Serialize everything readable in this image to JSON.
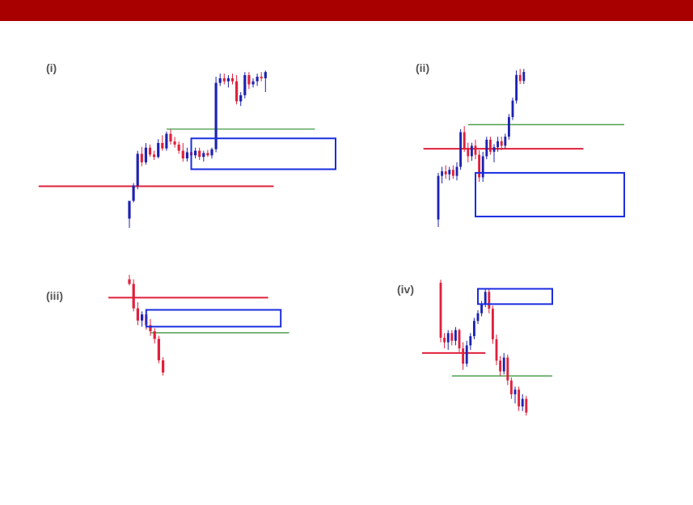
{
  "header": {
    "bar_color": "#a80000"
  },
  "colors": {
    "up": "#1c22b0",
    "down": "#e0203c",
    "level_red": "#e0203c",
    "level_green": "#2e8b2e",
    "zone_blue": "#1a2de0",
    "wick": "#333333"
  },
  "chart_data": [
    {
      "type": "candlestick",
      "label": "(i)",
      "ylim": [
        0,
        220
      ],
      "candles": [
        {
          "o": 12,
          "h": 35,
          "l": 0,
          "c": 35,
          "d": "up"
        },
        {
          "o": 35,
          "h": 58,
          "l": 33,
          "c": 55,
          "d": "up"
        },
        {
          "o": 55,
          "h": 100,
          "l": 50,
          "c": 96,
          "d": "up"
        },
        {
          "o": 96,
          "h": 105,
          "l": 80,
          "c": 85,
          "d": "down"
        },
        {
          "o": 85,
          "h": 110,
          "l": 82,
          "c": 104,
          "d": "up"
        },
        {
          "o": 104,
          "h": 108,
          "l": 92,
          "c": 95,
          "d": "down"
        },
        {
          "o": 95,
          "h": 100,
          "l": 88,
          "c": 92,
          "d": "down"
        },
        {
          "o": 92,
          "h": 115,
          "l": 90,
          "c": 110,
          "d": "up"
        },
        {
          "o": 110,
          "h": 120,
          "l": 100,
          "c": 103,
          "d": "down"
        },
        {
          "o": 103,
          "h": 125,
          "l": 100,
          "c": 122,
          "d": "up"
        },
        {
          "o": 122,
          "h": 128,
          "l": 108,
          "c": 112,
          "d": "down"
        },
        {
          "o": 112,
          "h": 118,
          "l": 104,
          "c": 108,
          "d": "down"
        },
        {
          "o": 108,
          "h": 112,
          "l": 96,
          "c": 100,
          "d": "down"
        },
        {
          "o": 100,
          "h": 110,
          "l": 86,
          "c": 90,
          "d": "down"
        },
        {
          "o": 90,
          "h": 104,
          "l": 86,
          "c": 98,
          "d": "up"
        },
        {
          "o": 98,
          "h": 102,
          "l": 90,
          "c": 94,
          "d": "down"
        },
        {
          "o": 94,
          "h": 104,
          "l": 90,
          "c": 100,
          "d": "up"
        },
        {
          "o": 100,
          "h": 104,
          "l": 88,
          "c": 92,
          "d": "down"
        },
        {
          "o": 92,
          "h": 100,
          "l": 86,
          "c": 97,
          "d": "up"
        },
        {
          "o": 97,
          "h": 101,
          "l": 92,
          "c": 94,
          "d": "down"
        },
        {
          "o": 94,
          "h": 104,
          "l": 90,
          "c": 102,
          "d": "up"
        },
        {
          "o": 102,
          "h": 196,
          "l": 98,
          "c": 188,
          "d": "up"
        },
        {
          "o": 188,
          "h": 200,
          "l": 184,
          "c": 194,
          "d": "up"
        },
        {
          "o": 194,
          "h": 200,
          "l": 186,
          "c": 190,
          "d": "down"
        },
        {
          "o": 190,
          "h": 198,
          "l": 182,
          "c": 194,
          "d": "up"
        },
        {
          "o": 194,
          "h": 200,
          "l": 186,
          "c": 190,
          "d": "down"
        },
        {
          "o": 190,
          "h": 198,
          "l": 160,
          "c": 164,
          "d": "down"
        },
        {
          "o": 164,
          "h": 176,
          "l": 158,
          "c": 172,
          "d": "up"
        },
        {
          "o": 172,
          "h": 202,
          "l": 168,
          "c": 198,
          "d": "up"
        },
        {
          "o": 198,
          "h": 202,
          "l": 180,
          "c": 186,
          "d": "down"
        },
        {
          "o": 186,
          "h": 194,
          "l": 182,
          "c": 190,
          "d": "up"
        },
        {
          "o": 190,
          "h": 200,
          "l": 184,
          "c": 196,
          "d": "up"
        },
        {
          "o": 196,
          "h": 202,
          "l": 190,
          "c": 194,
          "d": "down"
        },
        {
          "o": 194,
          "h": 204,
          "l": 176,
          "c": 202,
          "d": "up"
        }
      ],
      "levels": [
        {
          "color": "red",
          "y": 54,
          "from": -22,
          "to": 35
        },
        {
          "color": "green",
          "y": 128,
          "from": 9,
          "to": 45
        }
      ],
      "zones": [
        {
          "from": 15,
          "to": 50,
          "top": 116,
          "bottom": 76
        }
      ]
    },
    {
      "type": "candlestick",
      "label": "(ii)",
      "ylim": [
        0,
        220
      ],
      "candles": [
        {
          "o": 10,
          "h": 72,
          "l": 0,
          "c": 68,
          "d": "up"
        },
        {
          "o": 68,
          "h": 80,
          "l": 58,
          "c": 74,
          "d": "up"
        },
        {
          "o": 74,
          "h": 82,
          "l": 64,
          "c": 70,
          "d": "down"
        },
        {
          "o": 70,
          "h": 80,
          "l": 62,
          "c": 76,
          "d": "up"
        },
        {
          "o": 76,
          "h": 82,
          "l": 64,
          "c": 68,
          "d": "down"
        },
        {
          "o": 68,
          "h": 86,
          "l": 62,
          "c": 80,
          "d": "up"
        },
        {
          "o": 80,
          "h": 130,
          "l": 76,
          "c": 126,
          "d": "up"
        },
        {
          "o": 126,
          "h": 134,
          "l": 100,
          "c": 104,
          "d": "down"
        },
        {
          "o": 104,
          "h": 112,
          "l": 86,
          "c": 94,
          "d": "down"
        },
        {
          "o": 94,
          "h": 112,
          "l": 88,
          "c": 108,
          "d": "up"
        },
        {
          "o": 108,
          "h": 116,
          "l": 90,
          "c": 96,
          "d": "down"
        },
        {
          "o": 96,
          "h": 102,
          "l": 60,
          "c": 66,
          "d": "down"
        },
        {
          "o": 66,
          "h": 100,
          "l": 60,
          "c": 94,
          "d": "up"
        },
        {
          "o": 94,
          "h": 120,
          "l": 90,
          "c": 116,
          "d": "up"
        },
        {
          "o": 116,
          "h": 120,
          "l": 96,
          "c": 100,
          "d": "down"
        },
        {
          "o": 100,
          "h": 110,
          "l": 86,
          "c": 106,
          "d": "up"
        },
        {
          "o": 106,
          "h": 120,
          "l": 100,
          "c": 114,
          "d": "up"
        },
        {
          "o": 114,
          "h": 120,
          "l": 102,
          "c": 108,
          "d": "down"
        },
        {
          "o": 108,
          "h": 124,
          "l": 104,
          "c": 120,
          "d": "up"
        },
        {
          "o": 120,
          "h": 150,
          "l": 116,
          "c": 146,
          "d": "up"
        },
        {
          "o": 146,
          "h": 172,
          "l": 142,
          "c": 168,
          "d": "up"
        },
        {
          "o": 168,
          "h": 208,
          "l": 164,
          "c": 202,
          "d": "up"
        },
        {
          "o": 202,
          "h": 210,
          "l": 190,
          "c": 194,
          "d": "down"
        },
        {
          "o": 194,
          "h": 210,
          "l": 190,
          "c": 206,
          "d": "up"
        }
      ],
      "levels": [
        {
          "color": "red",
          "y": 104,
          "from": -4,
          "to": 39
        },
        {
          "color": "green",
          "y": 136,
          "from": 8,
          "to": 50
        }
      ],
      "zones": [
        {
          "from": 10,
          "to": 50,
          "top": 72,
          "bottom": 14
        }
      ]
    },
    {
      "type": "candlestick",
      "label": "(iii)",
      "ylim": [
        0,
        220
      ],
      "candles": [
        {
          "o": 214,
          "h": 220,
          "l": 206,
          "c": 208,
          "d": "down"
        },
        {
          "o": 208,
          "h": 214,
          "l": 172,
          "c": 176,
          "d": "down"
        },
        {
          "o": 176,
          "h": 184,
          "l": 154,
          "c": 160,
          "d": "down"
        },
        {
          "o": 160,
          "h": 172,
          "l": 152,
          "c": 168,
          "d": "up"
        },
        {
          "o": 168,
          "h": 172,
          "l": 148,
          "c": 154,
          "d": "down"
        },
        {
          "o": 154,
          "h": 162,
          "l": 140,
          "c": 146,
          "d": "down"
        },
        {
          "o": 146,
          "h": 150,
          "l": 130,
          "c": 136,
          "d": "down"
        },
        {
          "o": 136,
          "h": 140,
          "l": 104,
          "c": 108,
          "d": "down"
        },
        {
          "o": 108,
          "h": 112,
          "l": 88,
          "c": 92,
          "d": "down"
        }
      ],
      "levels": [
        {
          "color": "red",
          "y": 190,
          "from": -5,
          "to": 33
        },
        {
          "color": "green",
          "y": 144,
          "from": 5,
          "to": 38
        }
      ],
      "zones": [
        {
          "from": 4,
          "to": 36,
          "top": 174,
          "bottom": 152
        }
      ]
    },
    {
      "type": "candlestick",
      "label": "(iv)",
      "ylim": [
        0,
        220
      ],
      "candles": [
        {
          "o": 218,
          "h": 222,
          "l": 140,
          "c": 146,
          "d": "down"
        },
        {
          "o": 146,
          "h": 152,
          "l": 132,
          "c": 140,
          "d": "down"
        },
        {
          "o": 140,
          "h": 156,
          "l": 130,
          "c": 152,
          "d": "up"
        },
        {
          "o": 152,
          "h": 156,
          "l": 136,
          "c": 142,
          "d": "down"
        },
        {
          "o": 142,
          "h": 160,
          "l": 136,
          "c": 156,
          "d": "up"
        },
        {
          "o": 156,
          "h": 158,
          "l": 126,
          "c": 132,
          "d": "down"
        },
        {
          "o": 132,
          "h": 140,
          "l": 104,
          "c": 112,
          "d": "down"
        },
        {
          "o": 112,
          "h": 142,
          "l": 108,
          "c": 136,
          "d": "up"
        },
        {
          "o": 136,
          "h": 152,
          "l": 130,
          "c": 148,
          "d": "up"
        },
        {
          "o": 148,
          "h": 172,
          "l": 144,
          "c": 168,
          "d": "up"
        },
        {
          "o": 168,
          "h": 182,
          "l": 164,
          "c": 178,
          "d": "up"
        },
        {
          "o": 178,
          "h": 194,
          "l": 174,
          "c": 190,
          "d": "up"
        },
        {
          "o": 190,
          "h": 210,
          "l": 186,
          "c": 206,
          "d": "up"
        },
        {
          "o": 206,
          "h": 210,
          "l": 178,
          "c": 184,
          "d": "down"
        },
        {
          "o": 184,
          "h": 188,
          "l": 138,
          "c": 144,
          "d": "down"
        },
        {
          "o": 144,
          "h": 150,
          "l": 110,
          "c": 116,
          "d": "down"
        },
        {
          "o": 116,
          "h": 122,
          "l": 96,
          "c": 102,
          "d": "down"
        },
        {
          "o": 102,
          "h": 126,
          "l": 98,
          "c": 120,
          "d": "up"
        },
        {
          "o": 120,
          "h": 124,
          "l": 84,
          "c": 90,
          "d": "down"
        },
        {
          "o": 90,
          "h": 94,
          "l": 66,
          "c": 72,
          "d": "down"
        },
        {
          "o": 72,
          "h": 82,
          "l": 60,
          "c": 78,
          "d": "up"
        },
        {
          "o": 78,
          "h": 82,
          "l": 50,
          "c": 56,
          "d": "down"
        },
        {
          "o": 56,
          "h": 72,
          "l": 50,
          "c": 66,
          "d": "up"
        },
        {
          "o": 66,
          "h": 70,
          "l": 44,
          "c": 48,
          "d": "down"
        }
      ],
      "levels": [
        {
          "color": "red",
          "y": 126,
          "from": -5,
          "to": 12
        },
        {
          "color": "green",
          "y": 96,
          "from": 3,
          "to": 30
        }
      ],
      "zones": [
        {
          "from": 10,
          "to": 30,
          "top": 210,
          "bottom": 190
        }
      ]
    }
  ]
}
